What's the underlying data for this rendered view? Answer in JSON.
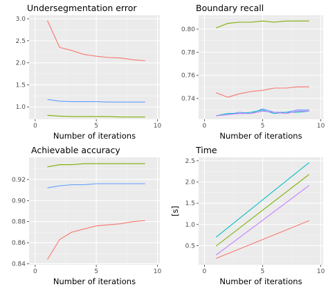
{
  "chart_data": [
    {
      "type": "line",
      "title": "Undersegmentation error",
      "xlabel": "Number of iterations",
      "ylabel": "",
      "xlim": [
        -0.5,
        10.2
      ],
      "ylim": [
        0.72,
        3.08
      ],
      "xticks": [
        0,
        5,
        10
      ],
      "xtick_labels": [
        "0",
        "5",
        "10"
      ],
      "yticks": [
        1.0,
        1.5,
        2.0,
        2.5,
        3.0
      ],
      "ytick_labels": [
        "1.0",
        "1.5",
        "2.0",
        "2.5",
        "3.0"
      ],
      "x": [
        1,
        2,
        3,
        4,
        5,
        6,
        7,
        8,
        9
      ],
      "series": [
        {
          "color": "#f8766d",
          "values": [
            2.96,
            2.35,
            2.28,
            2.19,
            2.15,
            2.12,
            2.11,
            2.07,
            2.05
          ]
        },
        {
          "color": "#619cff",
          "values": [
            1.17,
            1.13,
            1.12,
            1.12,
            1.12,
            1.11,
            1.11,
            1.11,
            1.11
          ]
        },
        {
          "color": "#7cae00",
          "values": [
            0.81,
            0.79,
            0.78,
            0.78,
            0.78,
            0.78,
            0.77,
            0.77,
            0.77
          ]
        }
      ]
    },
    {
      "type": "line",
      "title": "Boundary recall",
      "xlabel": "Number of iterations",
      "ylabel": "",
      "xlim": [
        -0.5,
        10.2
      ],
      "ylim": [
        0.722,
        0.812
      ],
      "xticks": [
        0,
        5,
        10
      ],
      "xtick_labels": [
        "0",
        "5",
        "10"
      ],
      "yticks": [
        0.74,
        0.76,
        0.78,
        0.8
      ],
      "ytick_labels": [
        "0.74",
        "0.76",
        "0.78",
        "0.80"
      ],
      "x": [
        1,
        2,
        3,
        4,
        5,
        6,
        7,
        8,
        9
      ],
      "series": [
        {
          "color": "#7cae00",
          "values": [
            0.801,
            0.805,
            0.806,
            0.806,
            0.807,
            0.806,
            0.807,
            0.807,
            0.807
          ]
        },
        {
          "color": "#f8766d",
          "values": [
            0.745,
            0.741,
            0.744,
            0.746,
            0.747,
            0.749,
            0.749,
            0.75,
            0.75
          ]
        },
        {
          "color": "#619cff",
          "values": [
            0.725,
            0.726,
            0.728,
            0.727,
            0.731,
            0.728,
            0.728,
            0.73,
            0.73
          ]
        },
        {
          "color": "#00bfc4",
          "values": [
            0.725,
            0.727,
            0.727,
            0.728,
            0.73,
            0.727,
            0.728,
            0.728,
            0.729
          ]
        },
        {
          "color": "#c77cff",
          "values": [
            0.725,
            0.726,
            0.727,
            0.727,
            0.729,
            0.728,
            0.727,
            0.729,
            0.729
          ]
        }
      ]
    },
    {
      "type": "line",
      "title": "Achievable accuracy",
      "xlabel": "Number of iterations",
      "ylabel": "",
      "xlim": [
        -0.5,
        10.2
      ],
      "ylim": [
        0.839,
        0.941
      ],
      "xticks": [
        0,
        5,
        10
      ],
      "xtick_labels": [
        "0",
        "5",
        "10"
      ],
      "yticks": [
        0.84,
        0.86,
        0.88,
        0.9,
        0.92
      ],
      "ytick_labels": [
        "0.84",
        "0.86",
        "0.88",
        "0.90",
        "0.92"
      ],
      "x": [
        1,
        2,
        3,
        4,
        5,
        6,
        7,
        8,
        9
      ],
      "series": [
        {
          "color": "#7cae00",
          "values": [
            0.932,
            0.934,
            0.934,
            0.935,
            0.935,
            0.935,
            0.935,
            0.935,
            0.935
          ]
        },
        {
          "color": "#619cff",
          "values": [
            0.912,
            0.914,
            0.915,
            0.915,
            0.916,
            0.916,
            0.916,
            0.916,
            0.916
          ]
        },
        {
          "color": "#f8766d",
          "values": [
            0.844,
            0.863,
            0.87,
            0.873,
            0.876,
            0.877,
            0.878,
            0.88,
            0.881
          ]
        }
      ]
    },
    {
      "type": "line",
      "title": "Time",
      "xlabel": "Number of iterations",
      "ylabel": "[s]",
      "xlim": [
        -0.5,
        10.2
      ],
      "ylim": [
        0.05,
        2.58
      ],
      "xticks": [
        0,
        5,
        10
      ],
      "xtick_labels": [
        "0",
        "5",
        "10"
      ],
      "yticks": [
        0.5,
        1.0,
        1.5,
        2.0,
        2.5
      ],
      "ytick_labels": [
        "0.5",
        "1.0",
        "1.5",
        "2.0",
        "2.5"
      ],
      "x": [
        1,
        9
      ],
      "series": [
        {
          "color": "#00bfc4",
          "values": [
            0.7,
            2.46
          ]
        },
        {
          "color": "#7cae00",
          "values": [
            0.49,
            2.18
          ]
        },
        {
          "color": "#c77cff",
          "values": [
            0.28,
            1.92
          ]
        },
        {
          "color": "#f8766d",
          "values": [
            0.2,
            1.09
          ]
        }
      ]
    }
  ]
}
